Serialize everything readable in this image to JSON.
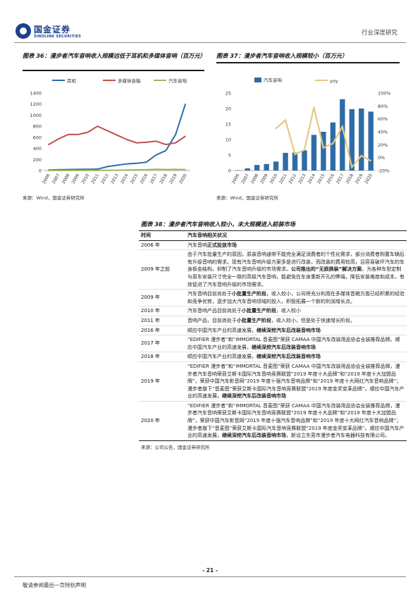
{
  "header": {
    "logo_cn": "国金证券",
    "logo_en": "SINOLINK SECURITIES",
    "right": "行业深度研究"
  },
  "fig36": {
    "title": "图表 36：漫步者汽车音响收入规模远低于耳机和多媒体音响（百万元）",
    "source": "来源：Wind，国金证券研究所"
  },
  "fig37": {
    "title": "图表 37：漫步者汽车音响收入规模较小（百万元）",
    "source": "来源：Wind，国金证券研究所"
  },
  "chart_data": [
    {
      "type": "line",
      "x": [
        "2006",
        "2007",
        "2008",
        "2009",
        "2010",
        "2011",
        "2012",
        "2013",
        "2014",
        "2015",
        "2016",
        "2017",
        "2018",
        "2019",
        "2020"
      ],
      "ylim": [
        0,
        1400
      ],
      "yticks": [
        0,
        200,
        400,
        600,
        800,
        1000,
        1200,
        1400
      ],
      "series": [
        {
          "name": "耳机",
          "color": "#2e6ca8",
          "values": [
            10,
            15,
            18,
            20,
            22,
            25,
            70,
            95,
            120,
            130,
            150,
            280,
            360,
            650,
            1200
          ]
        },
        {
          "name": "多媒体音箱",
          "color": "#c0504d",
          "values": [
            470,
            570,
            650,
            650,
            690,
            800,
            720,
            640,
            560,
            500,
            510,
            530,
            470,
            500,
            620
          ]
        },
        {
          "name": "汽车音响",
          "color": "#9bbb59",
          "values": [
            1,
            1,
            2,
            2,
            3,
            3,
            5,
            5,
            10,
            12,
            15,
            22,
            18,
            20,
            18
          ]
        }
      ]
    },
    {
      "type": "bar+line",
      "x": [
        "2006",
        "2007",
        "2008",
        "2009",
        "2010",
        "2011",
        "2012",
        "2013",
        "2014",
        "2015",
        "2016",
        "2017",
        "2018",
        "2019",
        "2020"
      ],
      "ylim_left": [
        0,
        25
      ],
      "yticks_left": [
        0,
        5,
        10,
        15,
        20,
        25
      ],
      "ylim_right": [
        -20,
        100
      ],
      "yticks_right": [
        "-20%",
        "0%",
        "20%",
        "40%",
        "60%",
        "80%",
        "100%"
      ],
      "bar_series": {
        "name": "汽车音响",
        "color": "#2e6ca8",
        "values": [
          0.1,
          0.7,
          1.8,
          2.1,
          2.9,
          5.7,
          5.8,
          6.5,
          11.5,
          12.5,
          15.5,
          23,
          19.8,
          20,
          19
        ]
      },
      "line_series": {
        "name": "yoy",
        "color": "#e8c880",
        "values": [
          null,
          null,
          null,
          null,
          45,
          58,
          5,
          12,
          78,
          15,
          22,
          48,
          -15,
          3,
          -5
        ]
      }
    }
  ],
  "table38": {
    "title": "图表 38：漫步者汽车音响收入较小，未大规模进入前装市场",
    "head": [
      "时间",
      "汽车音响相关状况"
    ],
    "rows": [
      {
        "year": "2006 年",
        "parts": [
          {
            "t": "汽车音响",
            "b": false
          },
          {
            "t": "正式投放市场",
            "b": true
          }
        ]
      },
      {
        "year": "2009 年之前",
        "parts": [
          {
            "t": "由于汽车批量生产的原因，原装音响通常不能完全满足消费者的个性化需求，部分消费者购置车辆后有升级音响的需求。现有汽车音响升级方案多是进行改装，而改装的费用较高，且容易破坏汽车的车身板金结构，抑制了汽车音响升级的市场需求。",
            "b": false
          },
          {
            "t": "公司推出的“无损换装”解决方案",
            "b": true
          },
          {
            "t": "，为各种车型定制与原车安装尺寸完全一致的高级汽车音响，能避免在车身重新开孔的弊端，降低安装难度和成本，有效促进了汽车音响升级的市场需求。",
            "b": false
          }
        ]
      },
      {
        "year": "2009 年",
        "parts": [
          {
            "t": "汽车音响目前尚处于",
            "b": false
          },
          {
            "t": "小批量生产阶段",
            "b": true
          },
          {
            "t": "，收入较小，公司将充分利用在多媒体音箱方面已经积累的经验和竞争优势，逐步加大汽车音响领域的投入，积极拓展一个新的利润增长点。",
            "b": false
          }
        ]
      },
      {
        "year": "2010 年",
        "parts": [
          {
            "t": "汽车音响产品目前尚处于",
            "b": false
          },
          {
            "t": "小批量生产阶段",
            "b": true
          },
          {
            "t": "，收入较小",
            "b": false
          }
        ]
      },
      {
        "year": "2011 年",
        "parts": [
          {
            "t": "音响产品，目前尚处于",
            "b": false
          },
          {
            "t": "小批量生产阶段",
            "b": true
          },
          {
            "t": "，收入较小，但是处于快速增长阶段。",
            "b": false
          }
        ]
      },
      {
        "year": "2016 年",
        "parts": [
          {
            "t": "顺应中国汽车产业的高速发展，",
            "b": false
          },
          {
            "t": "继续深挖汽车后改装音响市场",
            "b": true
          }
        ]
      },
      {
        "year": "2017 年",
        "parts": [
          {
            "t": "“EDIFIER 漫步者”和“IMMORTAL 音麦图”荣获 CAMAA 中国汽车改装用品协会全装推荐品牌。顺应中国汽车产业的高速发展，",
            "b": false
          },
          {
            "t": "继续深挖汽车后改装音响市场",
            "b": true
          }
        ]
      },
      {
        "year": "2018 年",
        "parts": [
          {
            "t": "顺应中国汽车产业的高速发展，",
            "b": false
          },
          {
            "t": "继续深挖汽车后改装音响市场",
            "b": true
          }
        ]
      },
      {
        "year": "2019 年",
        "parts": [
          {
            "t": "“EDIFIER 漫步者”和“IMMORTAL 音麦图”荣获 CAMAA 中国汽车改装用品协会全装推荐品牌，漫步者汽车音响荣获艾斯卡国际汽车音响竞赛联盟“2019 年度十大品牌”和“2019 年度十大加盟品牌”，荣获中国汽车影音网“2019 年度十强汽车音响品牌”和“2019 年度十大网红汽车音响品牌”；漫步者旗下“音麦图”荣获艾斯卡国际汽车音响竞赛联盟“2019 年度金奖变革品牌”。顺应中国汽车产业的高速发展，",
            "b": false
          },
          {
            "t": "继续深挖汽车后改装音响市场",
            "b": true
          }
        ]
      },
      {
        "year": "2020 年",
        "parts": [
          {
            "t": "“EDIFIER 漫步者”和“IMMORTAL 音麦图”荣获 CAMAA 中国汽车改装用品协会全装推荐品牌，漫步者汽车音响荣获艾斯卡国际汽车音响竞赛联盟“2019 年度十大品牌”和“2019 年度十大加盟品牌”，荣获中国汽车影音网“2019 年度十强汽车音响品牌”和“2019 年度十大网红汽车音响品牌”；漫步者旗下“音麦图”荣获艾斯卡国际汽车音响竞赛联盟“2019 年度金奖变革品牌”。顺应中国汽车产业的高速发展，",
            "b": false
          },
          {
            "t": "继续深挖汽车后改装音响市场",
            "b": true
          },
          {
            "t": "，新设立东莞市漫步者汽车电器科技有限公司。",
            "b": false
          }
        ]
      }
    ],
    "source": "来源：公司公告，国金证券研究所"
  },
  "footer": {
    "page": "- 21 -",
    "left": "敬请参阅最后一页特别声明"
  }
}
